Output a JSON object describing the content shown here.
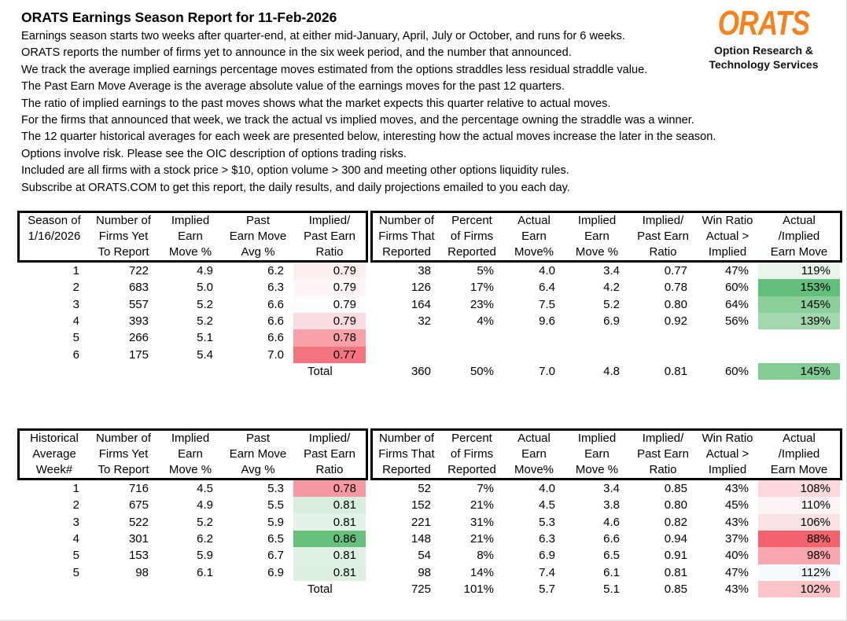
{
  "title": "ORATS Earnings Season Report for 11-Feb-2026",
  "intro_lines": [
    "Earnings season starts two weeks after quarter-end, at either mid-January, April, July or October, and runs for 6 weeks.",
    "ORATS reports the number of firms yet to announce in the six week period, and the number that announced.",
    "We track the average implied earnings percentage moves estimated from the options straddles less residual straddle value.",
    "The Past Earn Move Average is the average absolute value of the earnings moves for the past 12 quarters.",
    "The ratio of implied earnings to the past moves shows what the market expects this quarter relative to actual moves.",
    "For the firms that announced that week, we track the actual vs implied moves, and the percentage owning the straddle was a winner.",
    "The 12 quarter historical averages for each week are presented below, interesting how the actual moves increase the later in the season.",
    "Options involve risk. Please see the OIC description of options trading risks.",
    "Included are all firms with a stock price > $10, option volume > 300 and meeting other options liquidity rules.",
    "Subscribe at ORATS.COM to get this report, the daily results, and daily projections emailed to you each day."
  ],
  "logo": {
    "text": "ORATS",
    "subtitle1": "Option Research &",
    "subtitle2": "Technology Services",
    "color": "#F5821F"
  },
  "tables": [
    {
      "name": "season",
      "header_left": [
        [
          "Season of",
          "1/16/2026",
          ""
        ],
        [
          "Number of",
          "Firms Yet",
          "To Report"
        ],
        [
          "Implied",
          "Earn",
          "Move %"
        ],
        [
          "Past",
          "Earn Move",
          "Avg %"
        ],
        [
          "Implied/",
          "Past Earn",
          "Ratio"
        ]
      ],
      "header_right": [
        [
          "Number of",
          "Firms That",
          "Reported"
        ],
        [
          "Percent",
          "of Firms",
          "Reported"
        ],
        [
          "Actual",
          "Earn",
          "Move%"
        ],
        [
          "Implied",
          "Earn",
          "Move %"
        ],
        [
          "Implied/",
          "Past Earn",
          "Ratio"
        ],
        [
          "Win Ratio",
          "Actual >",
          "Implied"
        ],
        [
          "Actual",
          "/Implied",
          "Earn Move"
        ]
      ],
      "rows": [
        {
          "cells": [
            "1",
            "722",
            "4.9",
            "6.2",
            "0.79",
            "38",
            "5%",
            "4.0",
            "3.4",
            "0.77",
            "47%",
            "119%"
          ],
          "ratio_bg": "#fdeef0",
          "ai_bg": "#e9f5ec"
        },
        {
          "cells": [
            "2",
            "683",
            "5.0",
            "6.3",
            "0.79",
            "126",
            "17%",
            "6.4",
            "4.2",
            "0.78",
            "60%",
            "153%"
          ],
          "ratio_bg": "#fdf5f6",
          "ai_bg": "#63bf7c"
        },
        {
          "cells": [
            "3",
            "557",
            "5.2",
            "6.6",
            "0.79",
            "164",
            "23%",
            "7.5",
            "5.2",
            "0.80",
            "64%",
            "145%"
          ],
          "ratio_bg": "#fcfdfe",
          "ai_bg": "#8bcf9b"
        },
        {
          "cells": [
            "4",
            "393",
            "5.2",
            "6.6",
            "0.79",
            "32",
            "4%",
            "9.6",
            "6.9",
            "0.92",
            "56%",
            "139%"
          ],
          "ratio_bg": "#fadde0",
          "ai_bg": "#a3d8af"
        },
        {
          "cells": [
            "5",
            "266",
            "5.1",
            "6.6",
            "0.78",
            "",
            "",
            "",
            "",
            "",
            "",
            ""
          ],
          "ratio_bg": "#f7a2a9",
          "ai_bg": null
        },
        {
          "cells": [
            "6",
            "175",
            "5.4",
            "7.0",
            "0.77",
            "",
            "",
            "",
            "",
            "",
            "",
            ""
          ],
          "ratio_bg": "#f3747e",
          "ai_bg": null
        }
      ],
      "total": {
        "cells": [
          "",
          "",
          "",
          "",
          "Total",
          "360",
          "50%",
          "7.0",
          "4.8",
          "0.81",
          "60%",
          "145%"
        ],
        "ai_bg": "#84cc95"
      }
    },
    {
      "name": "historical",
      "header_left": [
        [
          "Historical",
          "Average",
          "Week#"
        ],
        [
          "Number of",
          "Firms Yet",
          "To Report"
        ],
        [
          "Implied",
          "Earn",
          "Move %"
        ],
        [
          "Past",
          "Earn Move",
          "Avg %"
        ],
        [
          "Implied/",
          "Past Earn",
          "Ratio"
        ]
      ],
      "header_right": [
        [
          "Number of",
          "Firms That",
          "Reported"
        ],
        [
          "Percent",
          "of Firms",
          "Reported"
        ],
        [
          "Actual",
          "Earn",
          "Move%"
        ],
        [
          "Implied",
          "Earn",
          "Move %"
        ],
        [
          "Implied/",
          "Past Earn",
          "Ratio"
        ],
        [
          "Win Ratio",
          "Actual >",
          "Implied"
        ],
        [
          "Actual",
          "/Implied",
          "Earn Move"
        ]
      ],
      "rows": [
        {
          "cells": [
            "1",
            "716",
            "4.5",
            "5.3",
            "0.78",
            "52",
            "7%",
            "4.0",
            "3.4",
            "0.85",
            "43%",
            "108%"
          ],
          "ratio_bg": "#f59aa2",
          "ai_bg": "#fbd9dc"
        },
        {
          "cells": [
            "2",
            "675",
            "4.9",
            "5.5",
            "0.81",
            "152",
            "21%",
            "4.5",
            "3.8",
            "0.80",
            "45%",
            "110%"
          ],
          "ratio_bg": "#d9eedd",
          "ai_bg": "#fdf4f5"
        },
        {
          "cells": [
            "3",
            "522",
            "5.2",
            "5.9",
            "0.81",
            "221",
            "31%",
            "5.3",
            "4.6",
            "0.82",
            "43%",
            "106%"
          ],
          "ratio_bg": "#e4f3e8",
          "ai_bg": "#fbe3e5"
        },
        {
          "cells": [
            "4",
            "301",
            "6.2",
            "6.5",
            "0.86",
            "148",
            "21%",
            "6.3",
            "6.6",
            "0.94",
            "37%",
            "88%"
          ],
          "ratio_bg": "#66c07e",
          "ai_bg": "#f2636e"
        },
        {
          "cells": [
            "5",
            "153",
            "5.9",
            "6.7",
            "0.81",
            "54",
            "8%",
            "6.9",
            "6.5",
            "0.91",
            "40%",
            "98%"
          ],
          "ratio_bg": "#dff1e3",
          "ai_bg": "#f7a6ad"
        },
        {
          "cells": [
            "5",
            "98",
            "6.1",
            "6.9",
            "0.81",
            "98",
            "14%",
            "7.4",
            "6.1",
            "0.81",
            "47%",
            "112%"
          ],
          "ratio_bg": "#ddf0e1",
          "ai_bg": "#f8fbfd"
        }
      ],
      "total": {
        "cells": [
          "",
          "",
          "",
          "",
          "Total",
          "725",
          "101%",
          "5.7",
          "5.1",
          "0.85",
          "43%",
          "102%"
        ],
        "ai_bg": "#f9c3c8"
      }
    }
  ]
}
